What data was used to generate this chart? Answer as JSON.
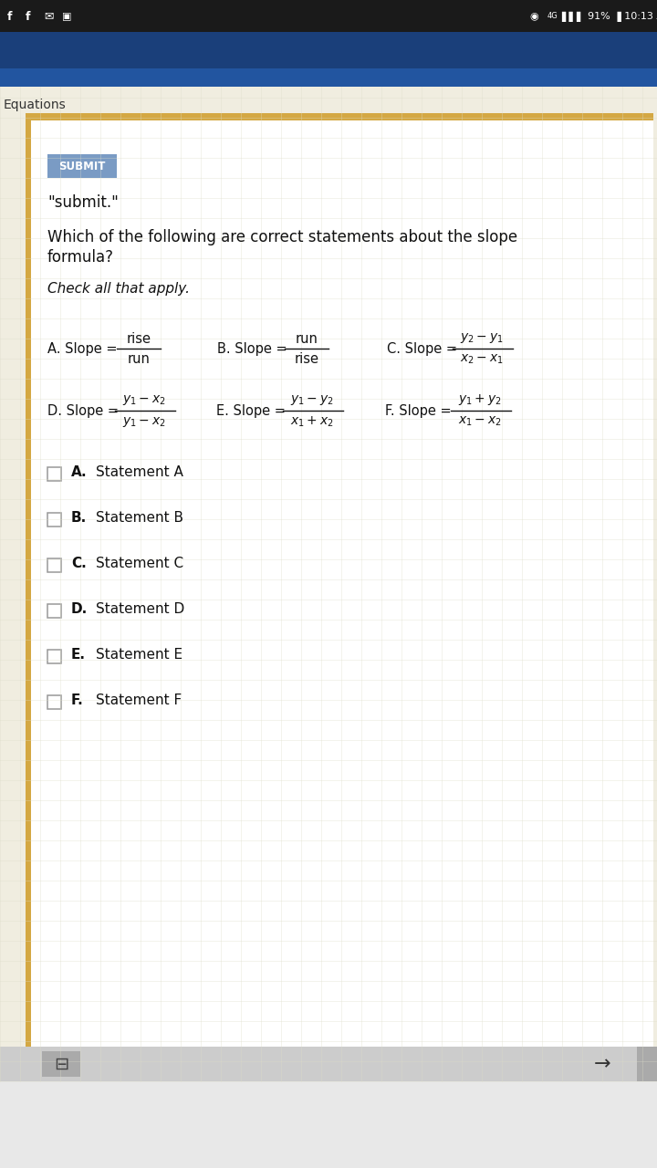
{
  "bg_color": "#e8e8e8",
  "status_bar_bg": "#1a1a1a",
  "blue_bar_color1": "#1e4a8a",
  "blue_bar_color2": "#2a5fa5",
  "gold_border_color": "#d4a843",
  "white_card_bg": "#ffffff",
  "grid_line_color": "#ddddc8",
  "grid_bg_color": "#f0ede0",
  "submit_btn_color": "#7a9bc4",
  "submit_btn_text": "SUBMIT",
  "submit_quote": "\"submit.\"",
  "equations_label": "Equations",
  "question_line1": "Which of the following are correct statements about the slope",
  "question_line2": "formula?",
  "check_label": "Check all that apply.",
  "statements": [
    {
      "label": "A.",
      "text": "Statement A"
    },
    {
      "label": "B.",
      "text": "Statement B"
    },
    {
      "label": "C.",
      "text": "Statement C"
    },
    {
      "label": "D.",
      "text": "Statement D"
    },
    {
      "label": "E.",
      "text": "Statement E"
    },
    {
      "label": "F.",
      "text": "Statement F"
    }
  ],
  "formula_A_num": "rise",
  "formula_A_den": "run",
  "formula_B_num": "run",
  "formula_B_den": "rise",
  "formula_C_num": "$y_2 - y_1$",
  "formula_C_den": "$x_2 - x_1$",
  "formula_D_num": "$y_1 - x_2$",
  "formula_D_den": "$y_1 - x_2$",
  "formula_E_num": "$y_1 - y_2$",
  "formula_E_den": "$x_1 + x_2$",
  "formula_F_num": "$y_1 + y_2$",
  "formula_F_den": "$x_1 - x_2$"
}
